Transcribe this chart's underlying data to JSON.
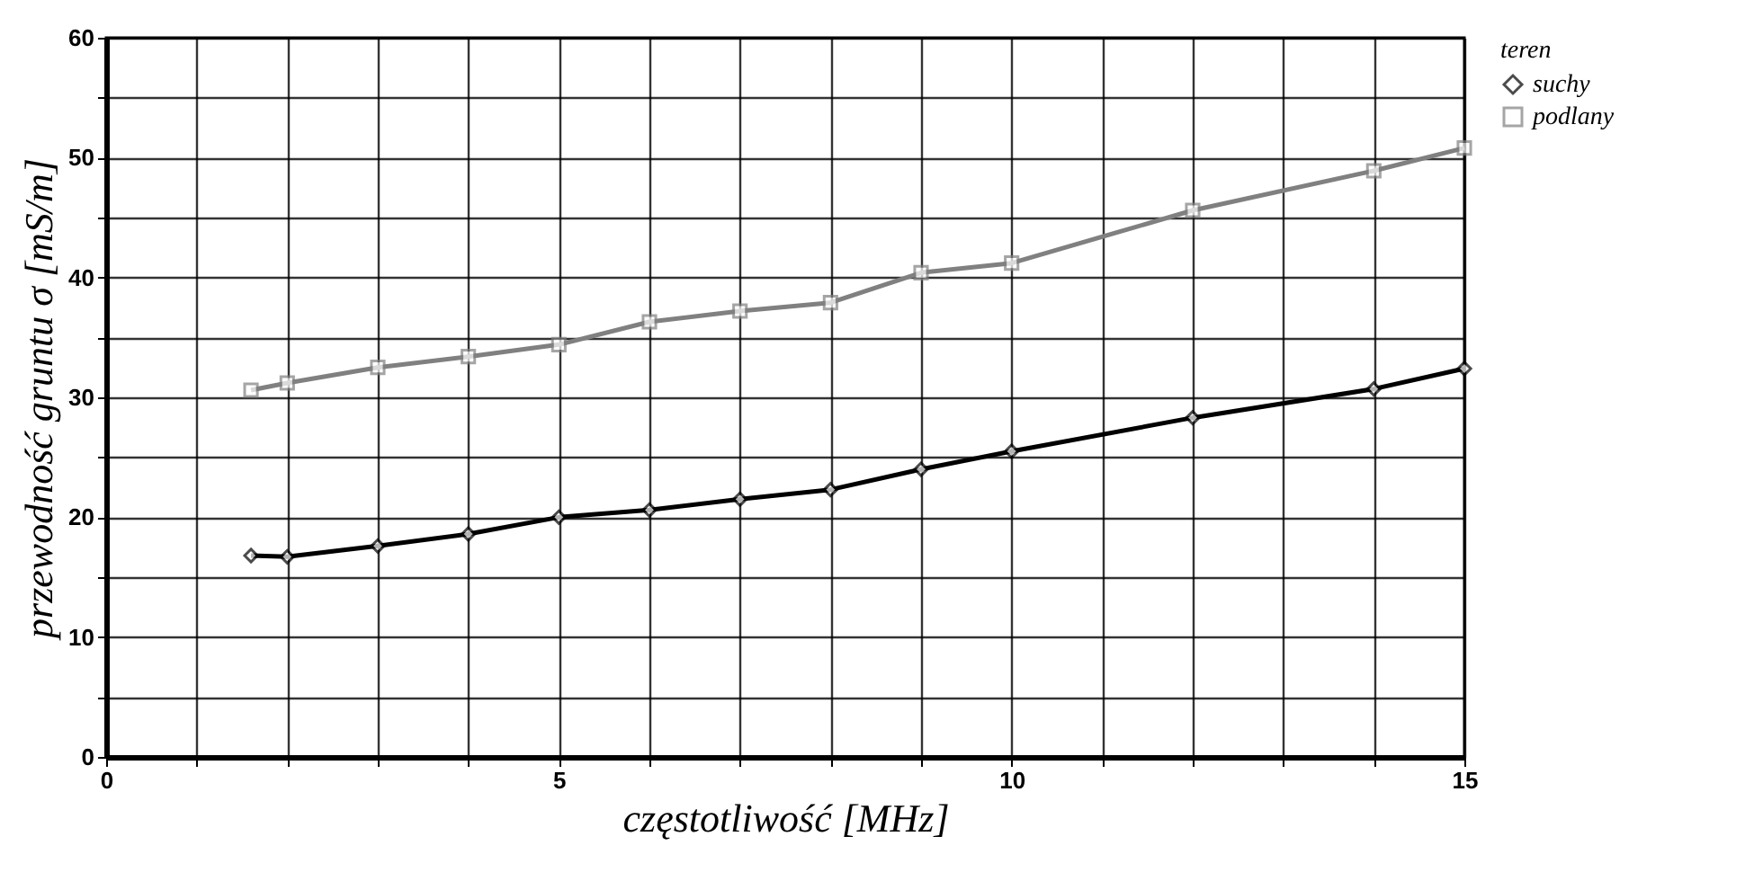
{
  "chart_data": {
    "type": "line",
    "xlabel": "częstotliwość [MHz]",
    "ylabel": "przewodność gruntu σ [mS/m]",
    "legend_title": "teren",
    "xlim": [
      0,
      15
    ],
    "ylim": [
      0,
      60
    ],
    "xticks": [
      0,
      {
        "value": 1,
        "label": null
      },
      {
        "value": 2,
        "label": null
      },
      {
        "value": 3,
        "label": null
      },
      {
        "value": 4,
        "label": null
      },
      5,
      {
        "value": 6,
        "label": null
      },
      {
        "value": 7,
        "label": null
      },
      {
        "value": 8,
        "label": null
      },
      {
        "value": 9,
        "label": null
      },
      10,
      {
        "value": 11,
        "label": null
      },
      {
        "value": 12,
        "label": null
      },
      {
        "value": 13,
        "label": null
      },
      {
        "value": 14,
        "label": null
      },
      15
    ],
    "yticks": [
      0,
      {
        "value": 5,
        "label": null
      },
      10,
      {
        "value": 15,
        "label": null
      },
      20,
      {
        "value": 25,
        "label": null
      },
      30,
      {
        "value": 35,
        "label": null
      },
      40,
      {
        "value": 45,
        "label": null
      },
      50,
      {
        "value": 55,
        "label": null
      },
      60
    ],
    "grid": true,
    "legend": "right",
    "line_style": "solid",
    "series": [
      {
        "name": "suchy",
        "color": "#000000",
        "marker": "diamond",
        "x": [
          1.6,
          2,
          3,
          4,
          5,
          6,
          7,
          8,
          9,
          10,
          12,
          14,
          15
        ],
        "values": [
          16.8,
          16.7,
          17.6,
          18.6,
          20,
          20.6,
          21.5,
          22.3,
          24,
          25.5,
          28.3,
          30.7,
          32.4
        ]
      },
      {
        "name": "podlany",
        "color": "#808080",
        "marker": "square",
        "x": [
          1.6,
          2,
          3,
          4,
          5,
          6,
          7,
          8,
          9,
          10,
          12,
          14,
          15
        ],
        "values": [
          30.6,
          31.2,
          32.5,
          33.4,
          34.4,
          36.3,
          37.2,
          37.9,
          40.4,
          41.2,
          45.6,
          48.9,
          50.8
        ]
      }
    ]
  }
}
